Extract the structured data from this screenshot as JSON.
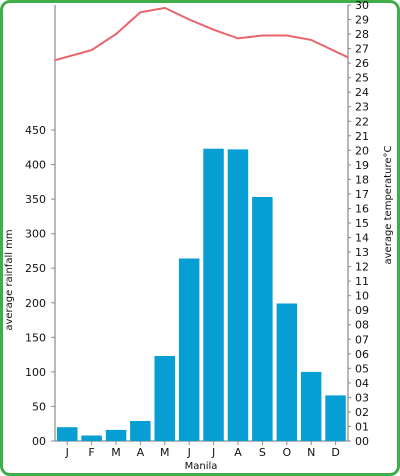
{
  "chart_data": {
    "type": "bar",
    "categories": [
      "J",
      "F",
      "M",
      "A",
      "M",
      "J",
      "J",
      "A",
      "S",
      "O",
      "N",
      "D"
    ],
    "series": [
      {
        "kind": "bar",
        "axis": "left",
        "color": "#079fd3",
        "values": [
          20,
          8,
          16,
          29,
          123,
          264,
          423,
          422,
          353,
          199,
          100,
          66
        ]
      },
      {
        "kind": "line",
        "axis": "right",
        "color": "#e8646a",
        "values": [
          26.2,
          26.9,
          28.0,
          29.5,
          29.8,
          29.0,
          28.3,
          27.7,
          27.9,
          27.9,
          27.6,
          26.4
        ]
      }
    ],
    "xlabel": "Manila",
    "ylabel_left": "average rainfall mm",
    "ylabel_right": "average temperature°C",
    "ylim_left": [
      0,
      450
    ],
    "ylim_right": [
      0,
      30
    ],
    "yticks_left": [
      "00",
      "50",
      "100",
      "150",
      "200",
      "250",
      "300",
      "350",
      "400",
      "450"
    ],
    "yticks_right": [
      "00",
      "01",
      "02",
      "03",
      "04",
      "05",
      "06",
      "07",
      "08",
      "09",
      "10",
      "11",
      "12",
      "13",
      "14",
      "15",
      "16",
      "17",
      "18",
      "19",
      "20",
      "21",
      "22",
      "23",
      "24",
      "25",
      "26",
      "27",
      "28",
      "29",
      "30"
    ],
    "grid": false,
    "legend": "none"
  }
}
